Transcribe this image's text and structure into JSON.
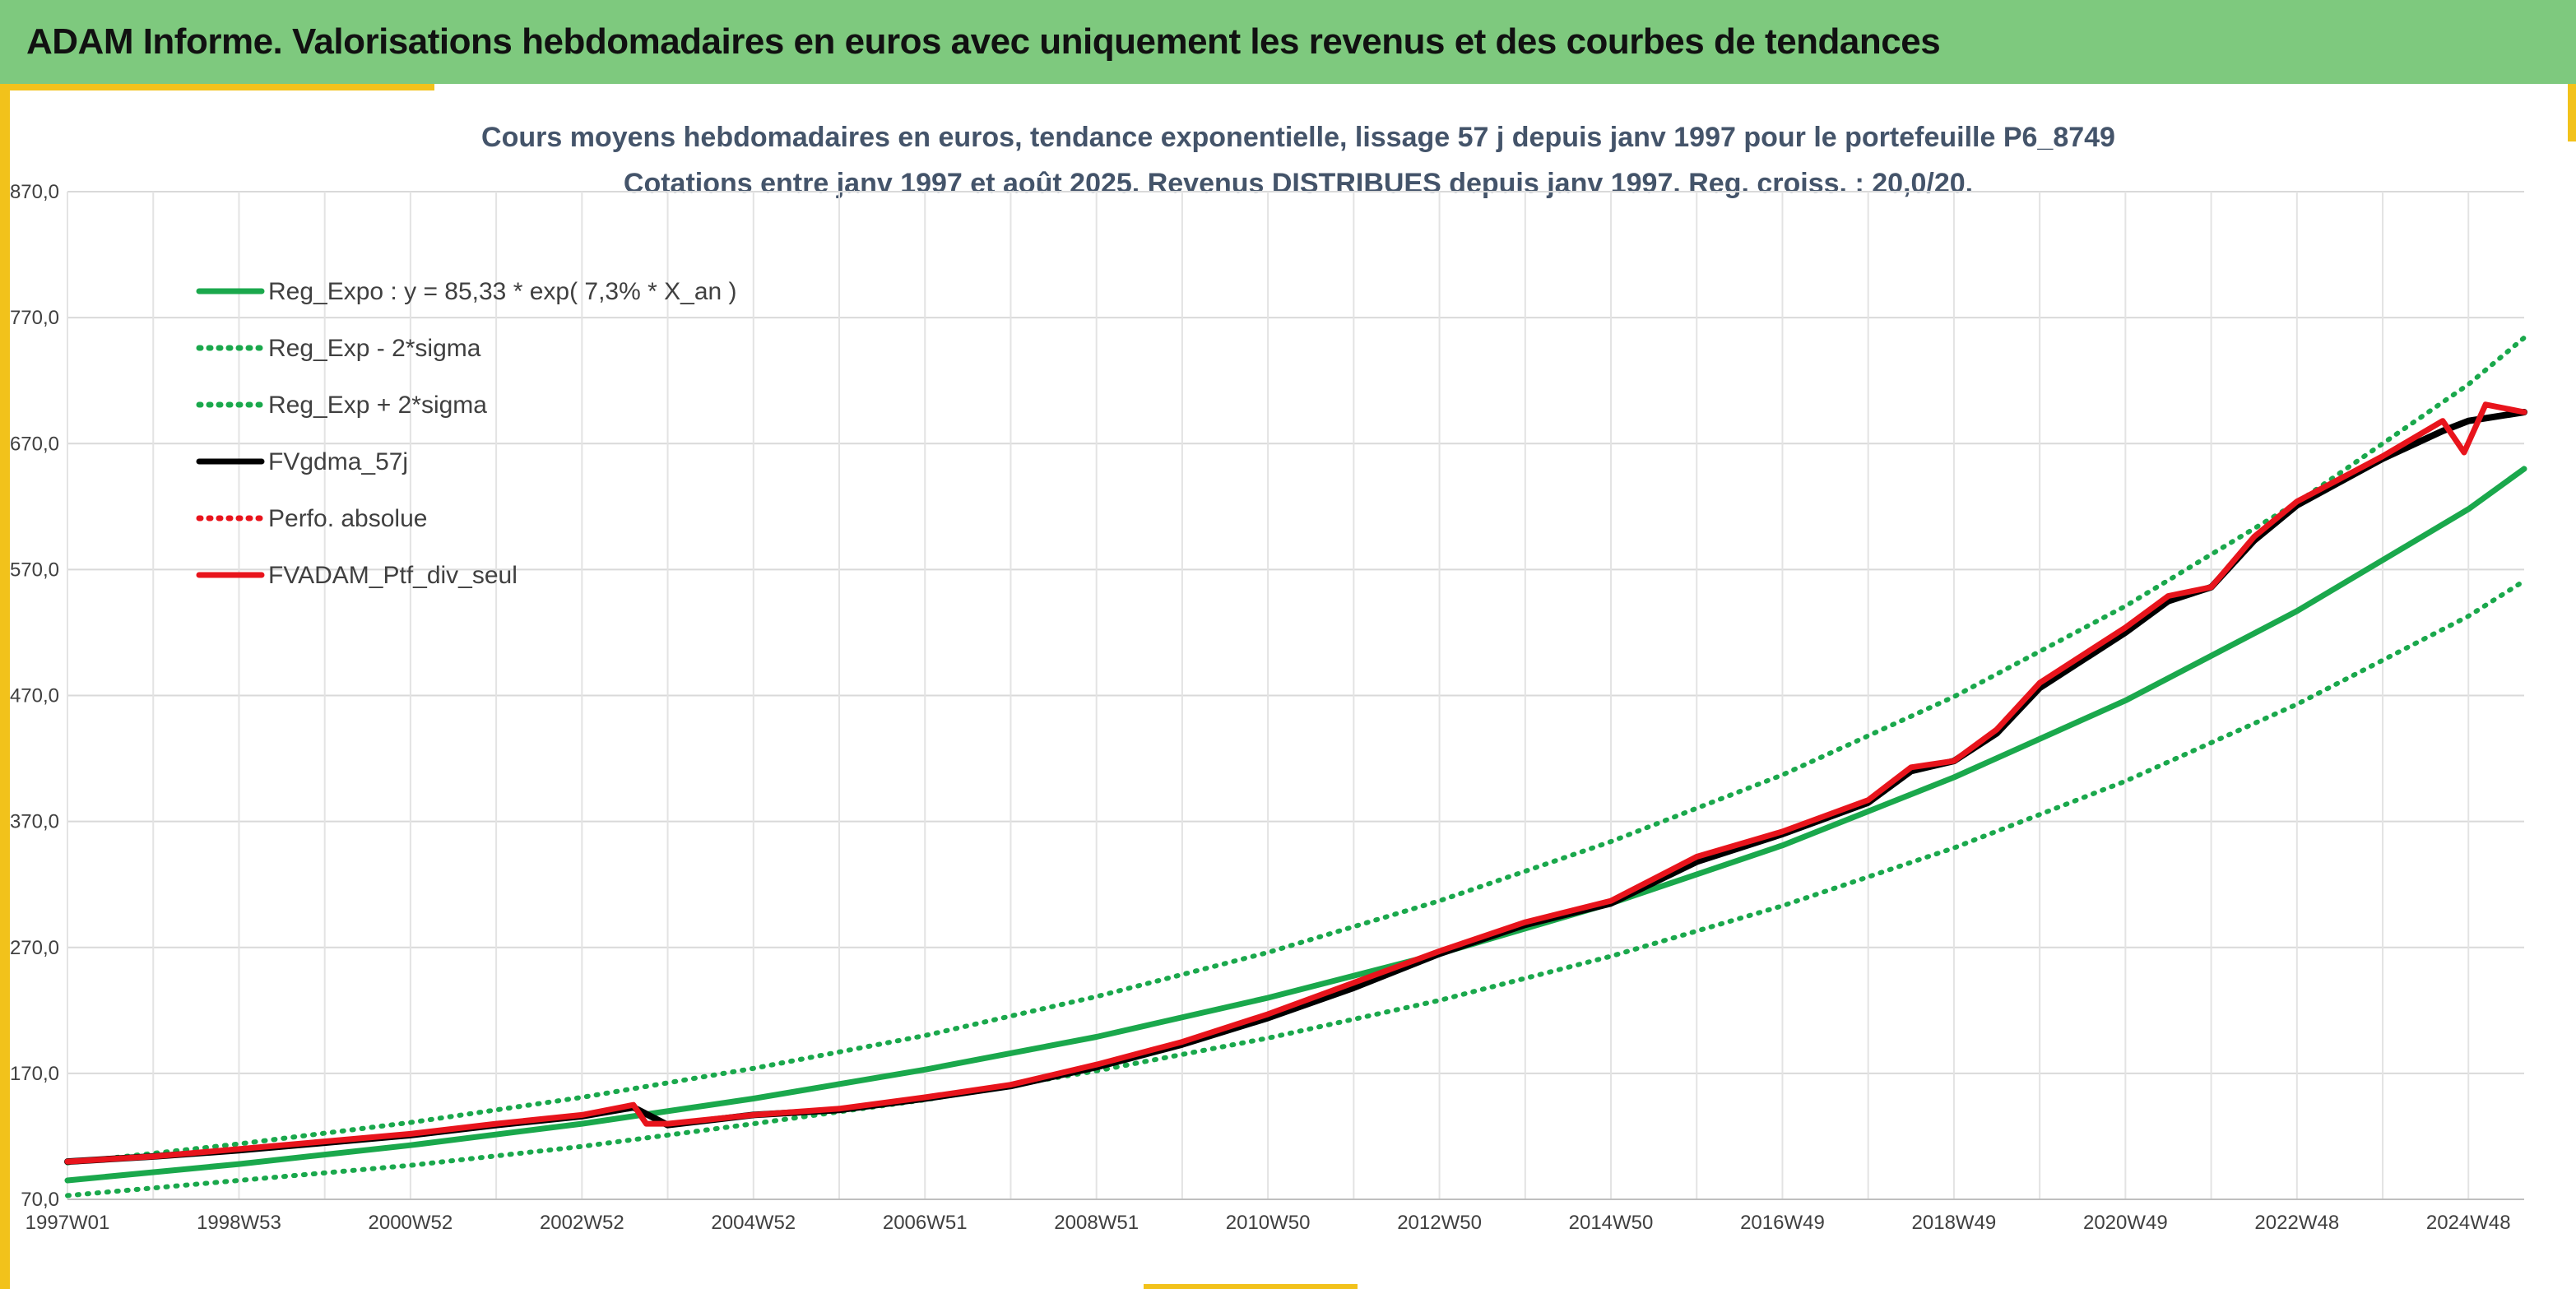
{
  "header": {
    "title": "ADAM Informe. Valorisations hebdomadaires en euros avec uniquement les revenus et des courbes de tendances"
  },
  "colors": {
    "banner": "#7ec97e",
    "accent_gold": "#f2c21b",
    "regression": "#1aa84c",
    "smoothed": "#000000",
    "portfolio": "#e8141c",
    "chart_title": "#44546a"
  },
  "chart_data": {
    "type": "line",
    "title": "Cours moyens hebdomadaires en euros, tendance exponentielle, lissage 57 j depuis janv 1997 pour le portefeuille P6_8749",
    "subtitle": "Cotations entre janv 1997 et août 2025. Revenus DISTRIBUES depuis janv 1997. Reg. croiss. : 20,0/20.",
    "xlabel": "",
    "ylabel": "",
    "x_ticks": [
      "1997W01",
      "1998W53",
      "2000W52",
      "2002W52",
      "2004W52",
      "2006W51",
      "2008W51",
      "2010W50",
      "2012W50",
      "2014W50",
      "2016W49",
      "2018W49",
      "2020W49",
      "2022W48",
      "2024W48"
    ],
    "x_tick_years": [
      1997,
      1999,
      2001,
      2003,
      2005,
      2007,
      2009,
      2011,
      2013,
      2015,
      2017,
      2019,
      2021,
      2023,
      2025
    ],
    "xlim": [
      1997.0,
      2025.65
    ],
    "y_ticks": [
      "70,0",
      "170,0",
      "270,0",
      "370,0",
      "470,0",
      "570,0",
      "670,0",
      "770,0",
      "870,0"
    ],
    "ylim": [
      70,
      870
    ],
    "grid": true,
    "legend_position": "top-left",
    "legend": [
      {
        "label": "Reg_Expo : y = 85,33 * exp( 7,3% *  X_an )",
        "color": "#1aa84c",
        "style": "solid"
      },
      {
        "label": "Reg_Exp - 2*sigma",
        "color": "#1aa84c",
        "style": "dotted"
      },
      {
        "label": "Reg_Exp + 2*sigma",
        "color": "#1aa84c",
        "style": "dotted"
      },
      {
        "label": "FVgdma_57j",
        "color": "#000000",
        "style": "solid"
      },
      {
        "label": "Perfo. absolue",
        "color": "#e8141c",
        "style": "dotted"
      },
      {
        "label": "FVADAM_Ptf_div_seul",
        "color": "#e8141c",
        "style": "solid"
      }
    ],
    "series": [
      {
        "name": "Reg_Expo : y = 85,33 * exp( 7,3% *  X_an )",
        "x": [
          1997,
          1999,
          2001,
          2003,
          2005,
          2007,
          2009,
          2011,
          2013,
          2015,
          2017,
          2019,
          2021,
          2023,
          2025,
          2025.65
        ],
        "values": [
          85,
          98,
          113,
          130,
          150,
          173,
          199,
          230,
          265,
          305,
          351,
          405,
          466,
          537,
          618,
          650
        ]
      },
      {
        "name": "Reg_Exp - 2*sigma",
        "x": [
          1997,
          1999,
          2001,
          2003,
          2005,
          2007,
          2009,
          2011,
          2013,
          2015,
          2017,
          2019,
          2021,
          2023,
          2025,
          2025.65
        ],
        "values": [
          73,
          85,
          97,
          112,
          130,
          149,
          172,
          198,
          228,
          263,
          303,
          349,
          402,
          463,
          533,
          561
        ]
      },
      {
        "name": "Reg_Exp + 2*sigma",
        "x": [
          1997,
          1999,
          2001,
          2003,
          2005,
          2007,
          2009,
          2011,
          2013,
          2015,
          2017,
          2019,
          2021,
          2023,
          2025,
          2025.65
        ],
        "values": [
          99,
          114,
          131,
          151,
          174,
          200,
          231,
          266,
          307,
          354,
          407,
          469,
          541,
          623,
          717,
          754
        ]
      },
      {
        "name": "FVgdma_57j",
        "x": [
          1997,
          1998,
          1999,
          2000,
          2001,
          2002,
          2003,
          2003.6,
          2004,
          2005,
          2006,
          2007,
          2008,
          2009,
          2010,
          2011,
          2012,
          2013,
          2014,
          2015,
          2016,
          2017,
          2018,
          2018.5,
          2019,
          2019.5,
          2020,
          2021,
          2021.5,
          2022,
          2022.5,
          2023,
          2024,
          2024.7,
          2025,
          2025.65
        ],
        "values": [
          100,
          104,
          109,
          115,
          121,
          129,
          136,
          143,
          129,
          137,
          141,
          150,
          160,
          175,
          193,
          214,
          238,
          265,
          288,
          305,
          338,
          360,
          385,
          410,
          418,
          440,
          476,
          520,
          545,
          556,
          593,
          621,
          658,
          680,
          688,
          695
        ]
      },
      {
        "name": "FVADAM_Ptf_div_seul",
        "x": [
          1997,
          1998,
          1999,
          2000,
          2001,
          2002,
          2003,
          2003.6,
          2003.75,
          2004,
          2005,
          2006,
          2007,
          2008,
          2009,
          2010,
          2011,
          2012,
          2013,
          2014,
          2015,
          2016,
          2017,
          2018,
          2018.5,
          2019,
          2019.5,
          2020,
          2021,
          2021.5,
          2022,
          2022.5,
          2023,
          2024,
          2024.7,
          2024.95,
          2025.2,
          2025.65
        ],
        "values": [
          100,
          104,
          110,
          116,
          122,
          130,
          137,
          145,
          130,
          130,
          137,
          142,
          151,
          161,
          177,
          195,
          217,
          242,
          267,
          290,
          307,
          342,
          362,
          387,
          413,
          418,
          443,
          480,
          524,
          549,
          556,
          596,
          624,
          660,
          688,
          663,
          701,
          695
        ]
      }
    ]
  }
}
